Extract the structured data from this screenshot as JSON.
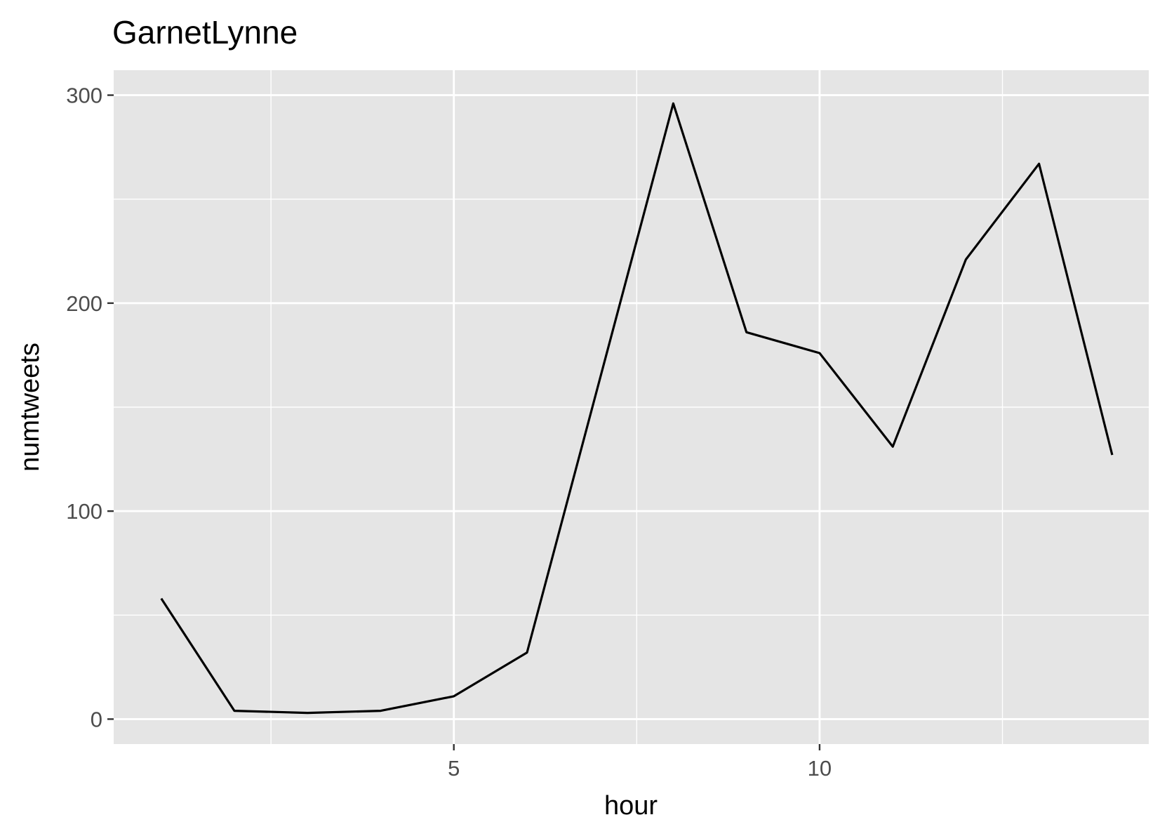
{
  "chart_data": {
    "type": "line",
    "title": "GarnetLynne",
    "xlabel": "hour",
    "ylabel": "numtweets",
    "x": [
      1,
      2,
      3,
      4,
      5,
      6,
      7,
      8,
      9,
      10,
      11,
      12,
      13,
      14
    ],
    "series": [
      {
        "values": [
          58,
          4,
          3,
          4,
          11,
          32,
          164,
          296,
          186,
          176,
          131,
          221,
          267,
          127
        ]
      }
    ],
    "xlim": [
      0.35,
      14.5
    ],
    "ylim": [
      -12,
      312
    ],
    "x_ticks": [
      5,
      10
    ],
    "x_minor_ticks": [
      2.5,
      7.5,
      12.5
    ],
    "y_ticks": [
      0,
      100,
      200,
      300
    ],
    "y_minor_ticks": [
      50,
      150,
      250
    ],
    "grid": true,
    "colors": {
      "panel": "#e5e5e5",
      "grid": "#ffffff",
      "line": "#000000",
      "tick_text": "#4d4d4d",
      "tick_mark": "#333333"
    }
  }
}
